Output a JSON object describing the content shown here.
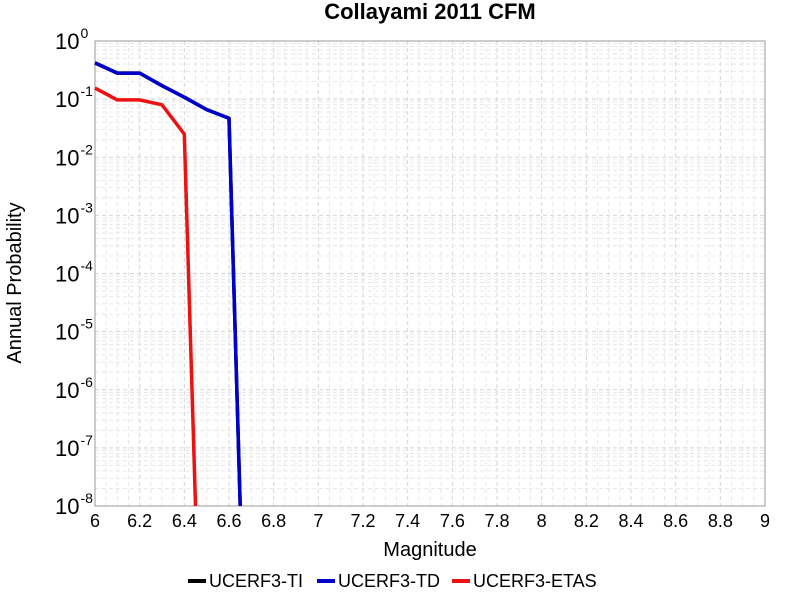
{
  "chart_data": {
    "type": "line",
    "title": "Collayami 2011 CFM",
    "xlabel": "Magnitude",
    "ylabel": "Annual Probability",
    "xlim": [
      6,
      9
    ],
    "ylim": [
      1e-08,
      1
    ],
    "yscale": "log",
    "grid": true,
    "legend_position": "bottom",
    "x_ticks": [
      "6",
      "6.2",
      "6.4",
      "6.6",
      "6.8",
      "7",
      "7.2",
      "7.4",
      "7.6",
      "7.8",
      "8",
      "8.2",
      "8.4",
      "8.6",
      "8.8",
      "9"
    ],
    "y_ticks": [
      {
        "base": "10",
        "exp": "0"
      },
      {
        "base": "10",
        "exp": "-1"
      },
      {
        "base": "10",
        "exp": "-2"
      },
      {
        "base": "10",
        "exp": "-3"
      },
      {
        "base": "10",
        "exp": "-4"
      },
      {
        "base": "10",
        "exp": "-5"
      },
      {
        "base": "10",
        "exp": "-6"
      },
      {
        "base": "10",
        "exp": "-7"
      },
      {
        "base": "10",
        "exp": "-8"
      }
    ],
    "series": [
      {
        "name": "UCERF3-TI",
        "color": "#000000",
        "points": [
          [
            6.0,
            0.42
          ],
          [
            6.1,
            0.28
          ],
          [
            6.2,
            0.28
          ],
          [
            6.3,
            0.17
          ],
          [
            6.4,
            0.108
          ],
          [
            6.5,
            0.066
          ],
          [
            6.6,
            0.047
          ],
          [
            6.65,
            1e-08
          ]
        ]
      },
      {
        "name": "UCERF3-TD",
        "color": "#0000cc",
        "points": [
          [
            6.0,
            0.42
          ],
          [
            6.1,
            0.28
          ],
          [
            6.2,
            0.28
          ],
          [
            6.3,
            0.17
          ],
          [
            6.4,
            0.108
          ],
          [
            6.5,
            0.066
          ],
          [
            6.6,
            0.047
          ],
          [
            6.65,
            1e-08
          ]
        ]
      },
      {
        "name": "UCERF3-ETAS",
        "color": "#ee1111",
        "points": [
          [
            6.0,
            0.155
          ],
          [
            6.1,
            0.097
          ],
          [
            6.2,
            0.097
          ],
          [
            6.3,
            0.08
          ],
          [
            6.4,
            0.025
          ],
          [
            6.45,
            1e-08
          ]
        ]
      }
    ]
  }
}
